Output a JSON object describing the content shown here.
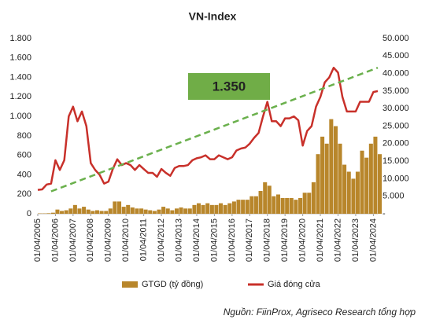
{
  "chart_data": {
    "type": "combo",
    "title": "VN-Index",
    "annotation": "1.350",
    "source": "Nguồn: FiinProx, Agriseco Research tổng hợp",
    "x": [
      "2005-04-01",
      "2005-07-01",
      "2005-10-01",
      "2006-01-01",
      "2006-04-01",
      "2006-07-01",
      "2006-10-01",
      "2007-01-01",
      "2007-04-01",
      "2007-07-01",
      "2007-10-01",
      "2008-01-01",
      "2008-04-01",
      "2008-07-01",
      "2008-10-01",
      "2009-01-01",
      "2009-04-01",
      "2009-07-01",
      "2009-10-01",
      "2010-01-01",
      "2010-04-01",
      "2010-07-01",
      "2010-10-01",
      "2011-01-01",
      "2011-04-01",
      "2011-07-01",
      "2011-10-01",
      "2012-01-01",
      "2012-04-01",
      "2012-07-01",
      "2012-10-01",
      "2013-01-01",
      "2013-04-01",
      "2013-07-01",
      "2013-10-01",
      "2014-01-01",
      "2014-04-01",
      "2014-07-01",
      "2014-10-01",
      "2015-01-01",
      "2015-04-01",
      "2015-07-01",
      "2015-10-01",
      "2016-01-01",
      "2016-04-01",
      "2016-07-01",
      "2016-10-01",
      "2017-01-01",
      "2017-04-01",
      "2017-07-01",
      "2017-10-01",
      "2018-01-01",
      "2018-04-01",
      "2018-07-01",
      "2018-10-01",
      "2019-01-01",
      "2019-04-01",
      "2019-07-01",
      "2019-10-01",
      "2020-01-01",
      "2020-04-01",
      "2020-07-01",
      "2020-10-01",
      "2021-01-01",
      "2021-04-01",
      "2021-07-01",
      "2021-10-01",
      "2022-01-01",
      "2022-04-01",
      "2022-07-01",
      "2022-10-01",
      "2023-01-01",
      "2023-04-01",
      "2023-07-01",
      "2023-10-01",
      "2024-01-01",
      "2024-04-01",
      "2024-07-01"
    ],
    "series": [
      {
        "name": "GTGD (tỷ đồng)",
        "kind": "bar",
        "axis": "y2",
        "color": "#b8862b",
        "values": [
          100,
          100,
          150,
          300,
          1200,
          800,
          1000,
          1500,
          2500,
          1500,
          2000,
          1200,
          800,
          1000,
          800,
          800,
          1500,
          3500,
          3500,
          2000,
          2500,
          1800,
          1500,
          1500,
          1200,
          1000,
          800,
          1200,
          2000,
          1500,
          1000,
          1500,
          1800,
          1500,
          1500,
          2500,
          3000,
          2500,
          3000,
          2500,
          2500,
          3000,
          2500,
          3000,
          3500,
          4000,
          4000,
          4000,
          5000,
          5000,
          6500,
          9000,
          8000,
          5000,
          5500,
          4500,
          4500,
          4500,
          4000,
          4500,
          6000,
          6000,
          9000,
          17000,
          22000,
          20000,
          27000,
          25000,
          20000,
          14000,
          12000,
          10000,
          12000,
          18000,
          16000,
          20000,
          22000,
          17000
        ]
      },
      {
        "name": "Giá đóng cửa",
        "kind": "line",
        "color": "#c8302a",
        "values": [
          245,
          250,
          300,
          310,
          550,
          450,
          550,
          1000,
          1100,
          950,
          1050,
          900,
          520,
          450,
          400,
          310,
          330,
          460,
          560,
          500,
          520,
          500,
          450,
          500,
          460,
          420,
          420,
          380,
          460,
          420,
          390,
          470,
          490,
          490,
          500,
          550,
          570,
          580,
          600,
          560,
          560,
          600,
          580,
          560,
          580,
          650,
          670,
          680,
          720,
          780,
          830,
          1000,
          1150,
          950,
          950,
          900,
          980,
          980,
          1000,
          960,
          700,
          850,
          900,
          1100,
          1200,
          1350,
          1400,
          1500,
          1450,
          1200,
          1050,
          1050,
          1050,
          1150,
          1150,
          1150,
          1250,
          1260
        ]
      }
    ],
    "trendline": {
      "x": [
        "2006-01-01",
        "2024-07-01"
      ],
      "values": [
        230,
        1500
      ],
      "color": "#6ab04c"
    },
    "annotation_color": "#70ad47",
    "xlim": [
      "2005-04-01",
      "2024-07-01"
    ],
    "xticks": [
      {
        "value": "2005-04-01",
        "label": "01/04/2005"
      },
      {
        "value": "2006-04-01",
        "label": "01/04/2006"
      },
      {
        "value": "2007-04-01",
        "label": "01/04/2007"
      },
      {
        "value": "2008-04-01",
        "label": "01/04/2008"
      },
      {
        "value": "2009-04-01",
        "label": "01/04/2009"
      },
      {
        "value": "2010-04-01",
        "label": "01/04/2010"
      },
      {
        "value": "2011-04-01",
        "label": "01/04/2011"
      },
      {
        "value": "2012-04-01",
        "label": "01/04/2012"
      },
      {
        "value": "2013-04-01",
        "label": "01/04/2013"
      },
      {
        "value": "2014-04-01",
        "label": "01/04/2014"
      },
      {
        "value": "2015-04-01",
        "label": "01/04/2015"
      },
      {
        "value": "2016-04-01",
        "label": "01/04/2016"
      },
      {
        "value": "2017-04-01",
        "label": "01/04/2017"
      },
      {
        "value": "2018-04-01",
        "label": "01/04/2018"
      },
      {
        "value": "2019-04-01",
        "label": "01/04/2019"
      },
      {
        "value": "2020-04-01",
        "label": "01/04/2020"
      },
      {
        "value": "2021-04-01",
        "label": "01/04/2021"
      },
      {
        "value": "2022-04-01",
        "label": "01/04/2022"
      },
      {
        "value": "2023-04-01",
        "label": "01/04/2023"
      },
      {
        "value": "2024-04-01",
        "label": "01/04/2024"
      }
    ],
    "ylim": [
      0,
      1800
    ],
    "yticks": [
      0,
      200,
      400,
      600,
      800,
      {
        "value": 1000,
        "label": "1.000"
      },
      {
        "value": 1200,
        "label": "1.200"
      },
      {
        "value": 1400,
        "label": "1.400"
      },
      {
        "value": 1600,
        "label": "1.600"
      },
      {
        "value": 1800,
        "label": "1.800"
      }
    ],
    "y2lim": [
      0,
      50000
    ],
    "y2ticks": [
      {
        "value": 0,
        "label": "-"
      },
      {
        "value": 5000,
        "label": "5.000"
      },
      {
        "value": 10000,
        "label": "10.000"
      },
      {
        "value": 15000,
        "label": "15.000"
      },
      {
        "value": 20000,
        "label": "20.000"
      },
      {
        "value": 25000,
        "label": "25.000"
      },
      {
        "value": 30000,
        "label": "30.000"
      },
      {
        "value": 35000,
        "label": "35.000"
      },
      {
        "value": 40000,
        "label": "40.000"
      },
      {
        "value": 45000,
        "label": "45.000"
      },
      {
        "value": 50000,
        "label": "50.000"
      }
    ]
  }
}
